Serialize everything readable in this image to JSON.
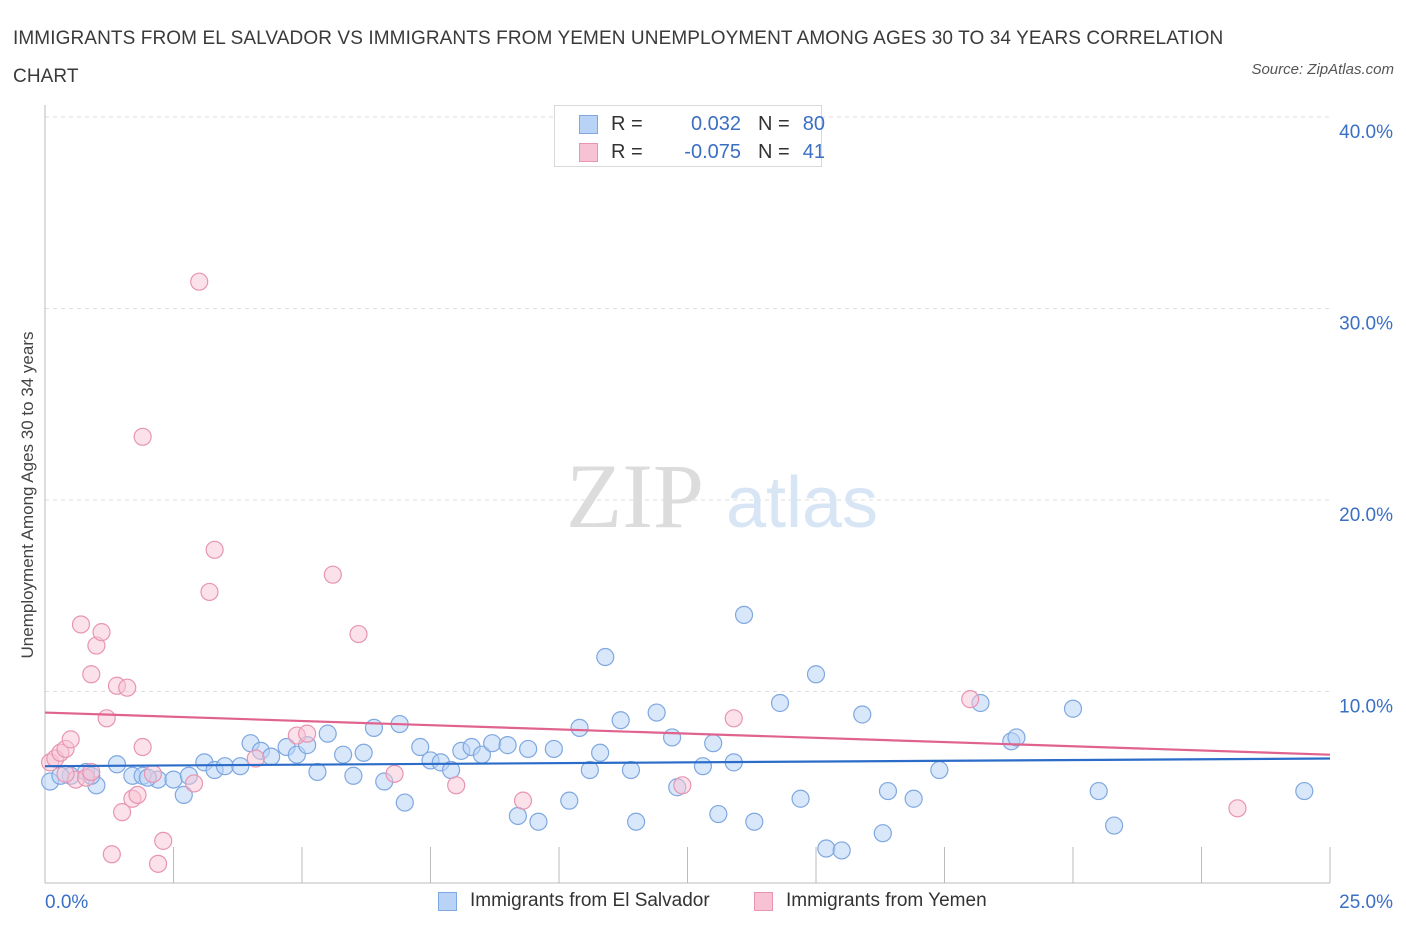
{
  "header": {
    "title": "IMMIGRANTS FROM EL SALVADOR VS IMMIGRANTS FROM YEMEN UNEMPLOYMENT AMONG AGES 30 TO 34 YEARS CORRELATION CHART",
    "source": "Source: ZipAtlas.com"
  },
  "watermark": {
    "zip": "ZIP",
    "atlas": "atlas"
  },
  "legend": {
    "r_label": "R =",
    "n_label": "N =",
    "series1": {
      "r": "0.032",
      "n": "80"
    },
    "series2": {
      "r": "-0.075",
      "n": "41"
    }
  },
  "colors": {
    "blue_fill": "#b8d3f5",
    "blue_stroke": "#7fa8e0",
    "blue_line": "#2b6cc8",
    "pink_fill": "#f7c3d4",
    "pink_stroke": "#e895b2",
    "pink_line": "#e0628e",
    "tick_label": "#3a6fc4"
  },
  "chart_data": {
    "type": "scatter",
    "title": "IMMIGRANTS FROM EL SALVADOR VS IMMIGRANTS FROM YEMEN UNEMPLOYMENT AMONG AGES 30 TO 34 YEARS CORRELATION CHART",
    "xlabel": "",
    "ylabel": "Unemployment Among Ages 30 to 34 years",
    "xlim": [
      0,
      25
    ],
    "ylim": [
      0,
      40
    ],
    "x_tick_labels": [
      "0.0%",
      "25.0%"
    ],
    "y_ticks": [
      10,
      20,
      30,
      40
    ],
    "y_tick_labels": [
      "10.0%",
      "20.0%",
      "30.0%",
      "40.0%"
    ],
    "grid": true,
    "legend_position": "top-center",
    "series": [
      {
        "name": "Immigrants from El Salvador",
        "color": "#7fa8e0",
        "trend": [
          [
            0,
            6.1
          ],
          [
            25,
            6.5
          ]
        ],
        "points": [
          [
            0.1,
            5.3
          ],
          [
            0.5,
            5.6
          ],
          [
            0.8,
            5.8
          ],
          [
            1.0,
            5.1
          ],
          [
            1.4,
            6.2
          ],
          [
            1.7,
            5.6
          ],
          [
            1.9,
            5.6
          ],
          [
            2.2,
            5.4
          ],
          [
            2.5,
            5.4
          ],
          [
            2.7,
            4.6
          ],
          [
            2.8,
            5.6
          ],
          [
            3.1,
            6.3
          ],
          [
            3.3,
            5.9
          ],
          [
            3.5,
            6.1
          ],
          [
            3.8,
            6.1
          ],
          [
            4.0,
            7.3
          ],
          [
            4.2,
            6.9
          ],
          [
            4.4,
            6.6
          ],
          [
            4.7,
            7.1
          ],
          [
            4.9,
            6.7
          ],
          [
            5.1,
            7.2
          ],
          [
            5.3,
            5.8
          ],
          [
            5.5,
            7.8
          ],
          [
            5.8,
            6.7
          ],
          [
            6.0,
            5.6
          ],
          [
            6.2,
            6.8
          ],
          [
            6.4,
            8.1
          ],
          [
            6.6,
            5.3
          ],
          [
            6.9,
            8.3
          ],
          [
            7.0,
            4.2
          ],
          [
            7.3,
            7.1
          ],
          [
            7.5,
            6.4
          ],
          [
            7.7,
            6.3
          ],
          [
            7.9,
            5.9
          ],
          [
            8.1,
            6.9
          ],
          [
            8.3,
            7.1
          ],
          [
            8.5,
            6.7
          ],
          [
            8.7,
            7.3
          ],
          [
            9.0,
            7.2
          ],
          [
            9.2,
            3.5
          ],
          [
            9.4,
            7.0
          ],
          [
            9.6,
            3.2
          ],
          [
            9.9,
            7.0
          ],
          [
            10.2,
            4.3
          ],
          [
            10.4,
            8.1
          ],
          [
            10.6,
            5.9
          ],
          [
            10.8,
            6.8
          ],
          [
            10.9,
            11.8
          ],
          [
            11.2,
            8.5
          ],
          [
            11.4,
            5.9
          ],
          [
            11.5,
            3.2
          ],
          [
            11.9,
            8.9
          ],
          [
            12.2,
            7.6
          ],
          [
            12.3,
            5.0
          ],
          [
            12.8,
            6.1
          ],
          [
            13.0,
            7.3
          ],
          [
            13.1,
            3.6
          ],
          [
            13.4,
            6.3
          ],
          [
            13.6,
            14.0
          ],
          [
            13.8,
            3.2
          ],
          [
            14.3,
            9.4
          ],
          [
            14.7,
            4.4
          ],
          [
            15.0,
            10.9
          ],
          [
            15.2,
            1.8
          ],
          [
            15.5,
            1.7
          ],
          [
            15.9,
            8.8
          ],
          [
            16.3,
            2.6
          ],
          [
            16.4,
            4.8
          ],
          [
            16.9,
            4.4
          ],
          [
            17.4,
            5.9
          ],
          [
            18.2,
            9.4
          ],
          [
            18.8,
            7.4
          ],
          [
            18.9,
            7.6
          ],
          [
            20.0,
            9.1
          ],
          [
            20.5,
            4.8
          ],
          [
            20.8,
            3.0
          ],
          [
            24.5,
            4.8
          ],
          [
            0.3,
            5.6
          ],
          [
            0.9,
            5.6
          ],
          [
            2.0,
            5.5
          ]
        ]
      },
      {
        "name": "Immigrants from Yemen",
        "color": "#e895b2",
        "trend": [
          [
            0,
            8.9
          ],
          [
            25,
            6.7
          ]
        ],
        "points": [
          [
            0.1,
            6.3
          ],
          [
            0.2,
            6.5
          ],
          [
            0.3,
            6.8
          ],
          [
            0.4,
            7.0
          ],
          [
            0.5,
            7.5
          ],
          [
            0.6,
            5.4
          ],
          [
            0.7,
            13.5
          ],
          [
            0.8,
            5.5
          ],
          [
            0.9,
            5.8
          ],
          [
            0.9,
            10.9
          ],
          [
            1.0,
            12.4
          ],
          [
            1.1,
            13.1
          ],
          [
            1.2,
            8.6
          ],
          [
            1.3,
            1.5
          ],
          [
            1.4,
            10.3
          ],
          [
            1.5,
            3.7
          ],
          [
            1.6,
            10.2
          ],
          [
            1.7,
            4.4
          ],
          [
            1.8,
            4.6
          ],
          [
            1.9,
            7.1
          ],
          [
            1.9,
            23.3
          ],
          [
            2.1,
            5.7
          ],
          [
            2.2,
            1.0
          ],
          [
            2.3,
            2.2
          ],
          [
            2.9,
            5.2
          ],
          [
            3.0,
            31.4
          ],
          [
            3.2,
            15.2
          ],
          [
            3.3,
            17.4
          ],
          [
            4.1,
            6.5
          ],
          [
            4.9,
            7.7
          ],
          [
            5.1,
            7.8
          ],
          [
            5.6,
            16.1
          ],
          [
            6.1,
            13.0
          ],
          [
            6.8,
            5.7
          ],
          [
            8.0,
            5.1
          ],
          [
            9.3,
            4.3
          ],
          [
            12.4,
            5.1
          ],
          [
            13.4,
            8.6
          ],
          [
            18.0,
            9.6
          ],
          [
            23.2,
            3.9
          ],
          [
            0.4,
            5.7
          ]
        ]
      }
    ]
  },
  "bottom_legend": {
    "series1": "Immigrants from El Salvador",
    "series2": "Immigrants from Yemen"
  }
}
